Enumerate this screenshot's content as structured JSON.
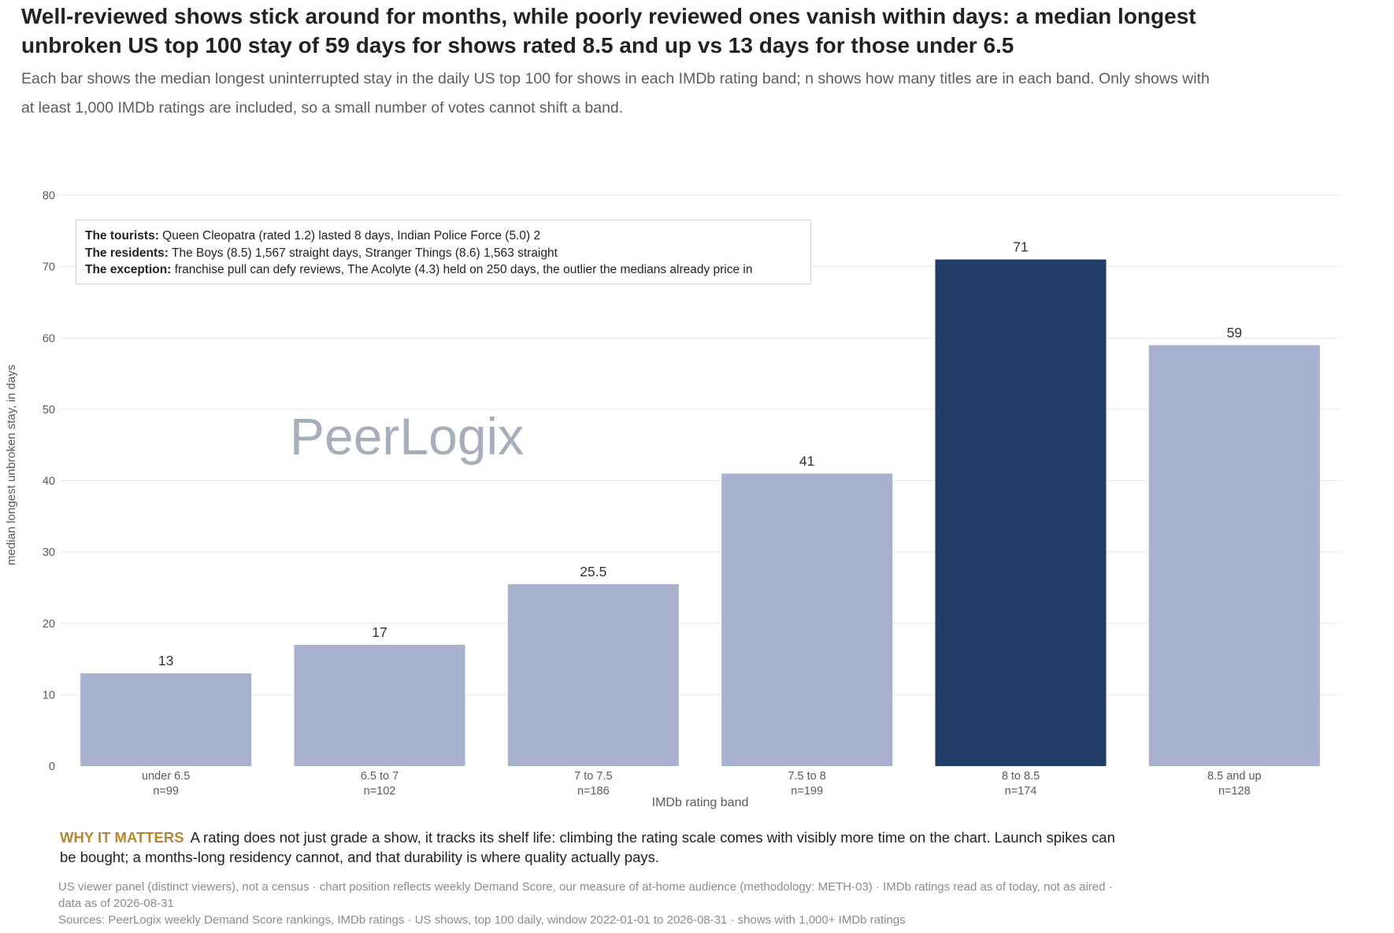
{
  "header": {
    "title": "Well-reviewed shows stick around for months, while poorly reviewed ones vanish within days: a median longest unbroken US top 100 stay of 59 days for shows rated 8.5 and up vs 13 days for those under 6.5",
    "subtitle": "Each bar shows the median longest uninterrupted stay in the daily US top 100 for shows in each IMDb rating band; n shows how many titles are in each band. Only shows with at least 1,000 IMDb ratings are included, so a small number of votes cannot shift a band."
  },
  "annotation": {
    "tourists_label": "The tourists:",
    "tourists_text": " Queen Cleopatra (rated 1.2) lasted 8 days, Indian Police Force (5.0) 2",
    "residents_label": "The residents:",
    "residents_text": " The Boys (8.5) 1,567 straight days, Stranger Things (8.6) 1,563 straight",
    "exception_label": "The exception:",
    "exception_text": " franchise pull can defy reviews, The Acolyte (4.3) held on 250 days, the outlier the medians already price in"
  },
  "watermark": "PeerLogix",
  "why": {
    "label": "WHY IT MATTERS",
    "text": "A rating does not just grade a show, it tracks its shelf life: climbing the rating scale comes with visibly more time on the chart. Launch spikes can be bought; a months-long residency cannot, and that durability is where quality actually pays."
  },
  "footer": {
    "note": "US viewer panel (distinct viewers), not a census · chart position reflects weekly Demand Score, our measure of at-home audience (methodology: METH-03) · IMDb ratings read as of today, not as aired · data as of 2026-08-31",
    "sources": "Sources: PeerLogix weekly Demand Score rankings, IMDb ratings · US shows, top 100 daily, window 2022-01-01 to 2026-08-31 · shows with 1,000+ IMDb ratings"
  },
  "chart_data": {
    "type": "bar",
    "categories": [
      "under 6.5",
      "6.5 to 7",
      "7 to 7.5",
      "7.5 to 8",
      "8 to 8.5",
      "8.5 and up"
    ],
    "counts": [
      "n=99",
      "n=102",
      "n=186",
      "n=199",
      "n=174",
      "n=128"
    ],
    "values": [
      13,
      17,
      25.5,
      41,
      71,
      59
    ],
    "value_labels": [
      "13",
      "17",
      "25.5",
      "41",
      "71",
      "59"
    ],
    "highlight_index": 4,
    "xlabel": "IMDb rating band",
    "ylabel": "median longest unbroken stay, in days",
    "ylim": [
      0,
      80
    ],
    "yticks": [
      0,
      10,
      20,
      30,
      40,
      50,
      60,
      70,
      80
    ],
    "grid": true,
    "colors": {
      "bar": "#a8b1cd",
      "highlight": "#233d69",
      "grid": "#e8e8e8",
      "axis_text": "#5a5a5a"
    }
  }
}
